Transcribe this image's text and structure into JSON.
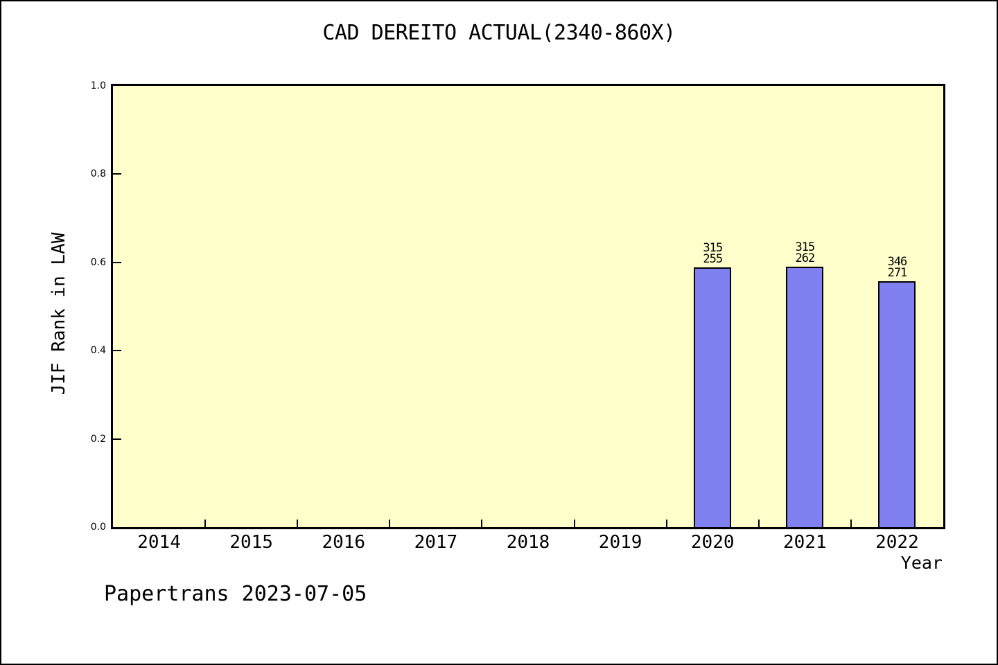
{
  "footer": {
    "watermark": "Papertrans 2023-07-05"
  },
  "chart_data": {
    "type": "bar",
    "title": "CAD DEREITO ACTUAL(2340-860X)",
    "xlabel": "Year",
    "ylabel": "JIF Rank in LAW",
    "ylim": [
      0.0,
      1.0
    ],
    "yticks": [
      0.0,
      0.2,
      0.4,
      0.6,
      0.8,
      1.0
    ],
    "grid": false,
    "legend": false,
    "categories": [
      "2014",
      "2015",
      "2016",
      "2017",
      "2018",
      "2019",
      "2020",
      "2021",
      "2022"
    ],
    "bars": [
      {
        "year": "2020",
        "value": 0.589,
        "annotation_top": "315",
        "annotation_bottom": "255"
      },
      {
        "year": "2021",
        "value": 0.591,
        "annotation_top": "315",
        "annotation_bottom": "262"
      },
      {
        "year": "2022",
        "value": 0.557,
        "annotation_top": "346",
        "annotation_bottom": "271"
      }
    ],
    "colors": {
      "plot_background": "#ffffcc",
      "outer_background": "#ffffff",
      "bar_fill": "#8080f0",
      "bar_edge": "#000000",
      "axis": "#000000",
      "text": "#000000"
    }
  }
}
